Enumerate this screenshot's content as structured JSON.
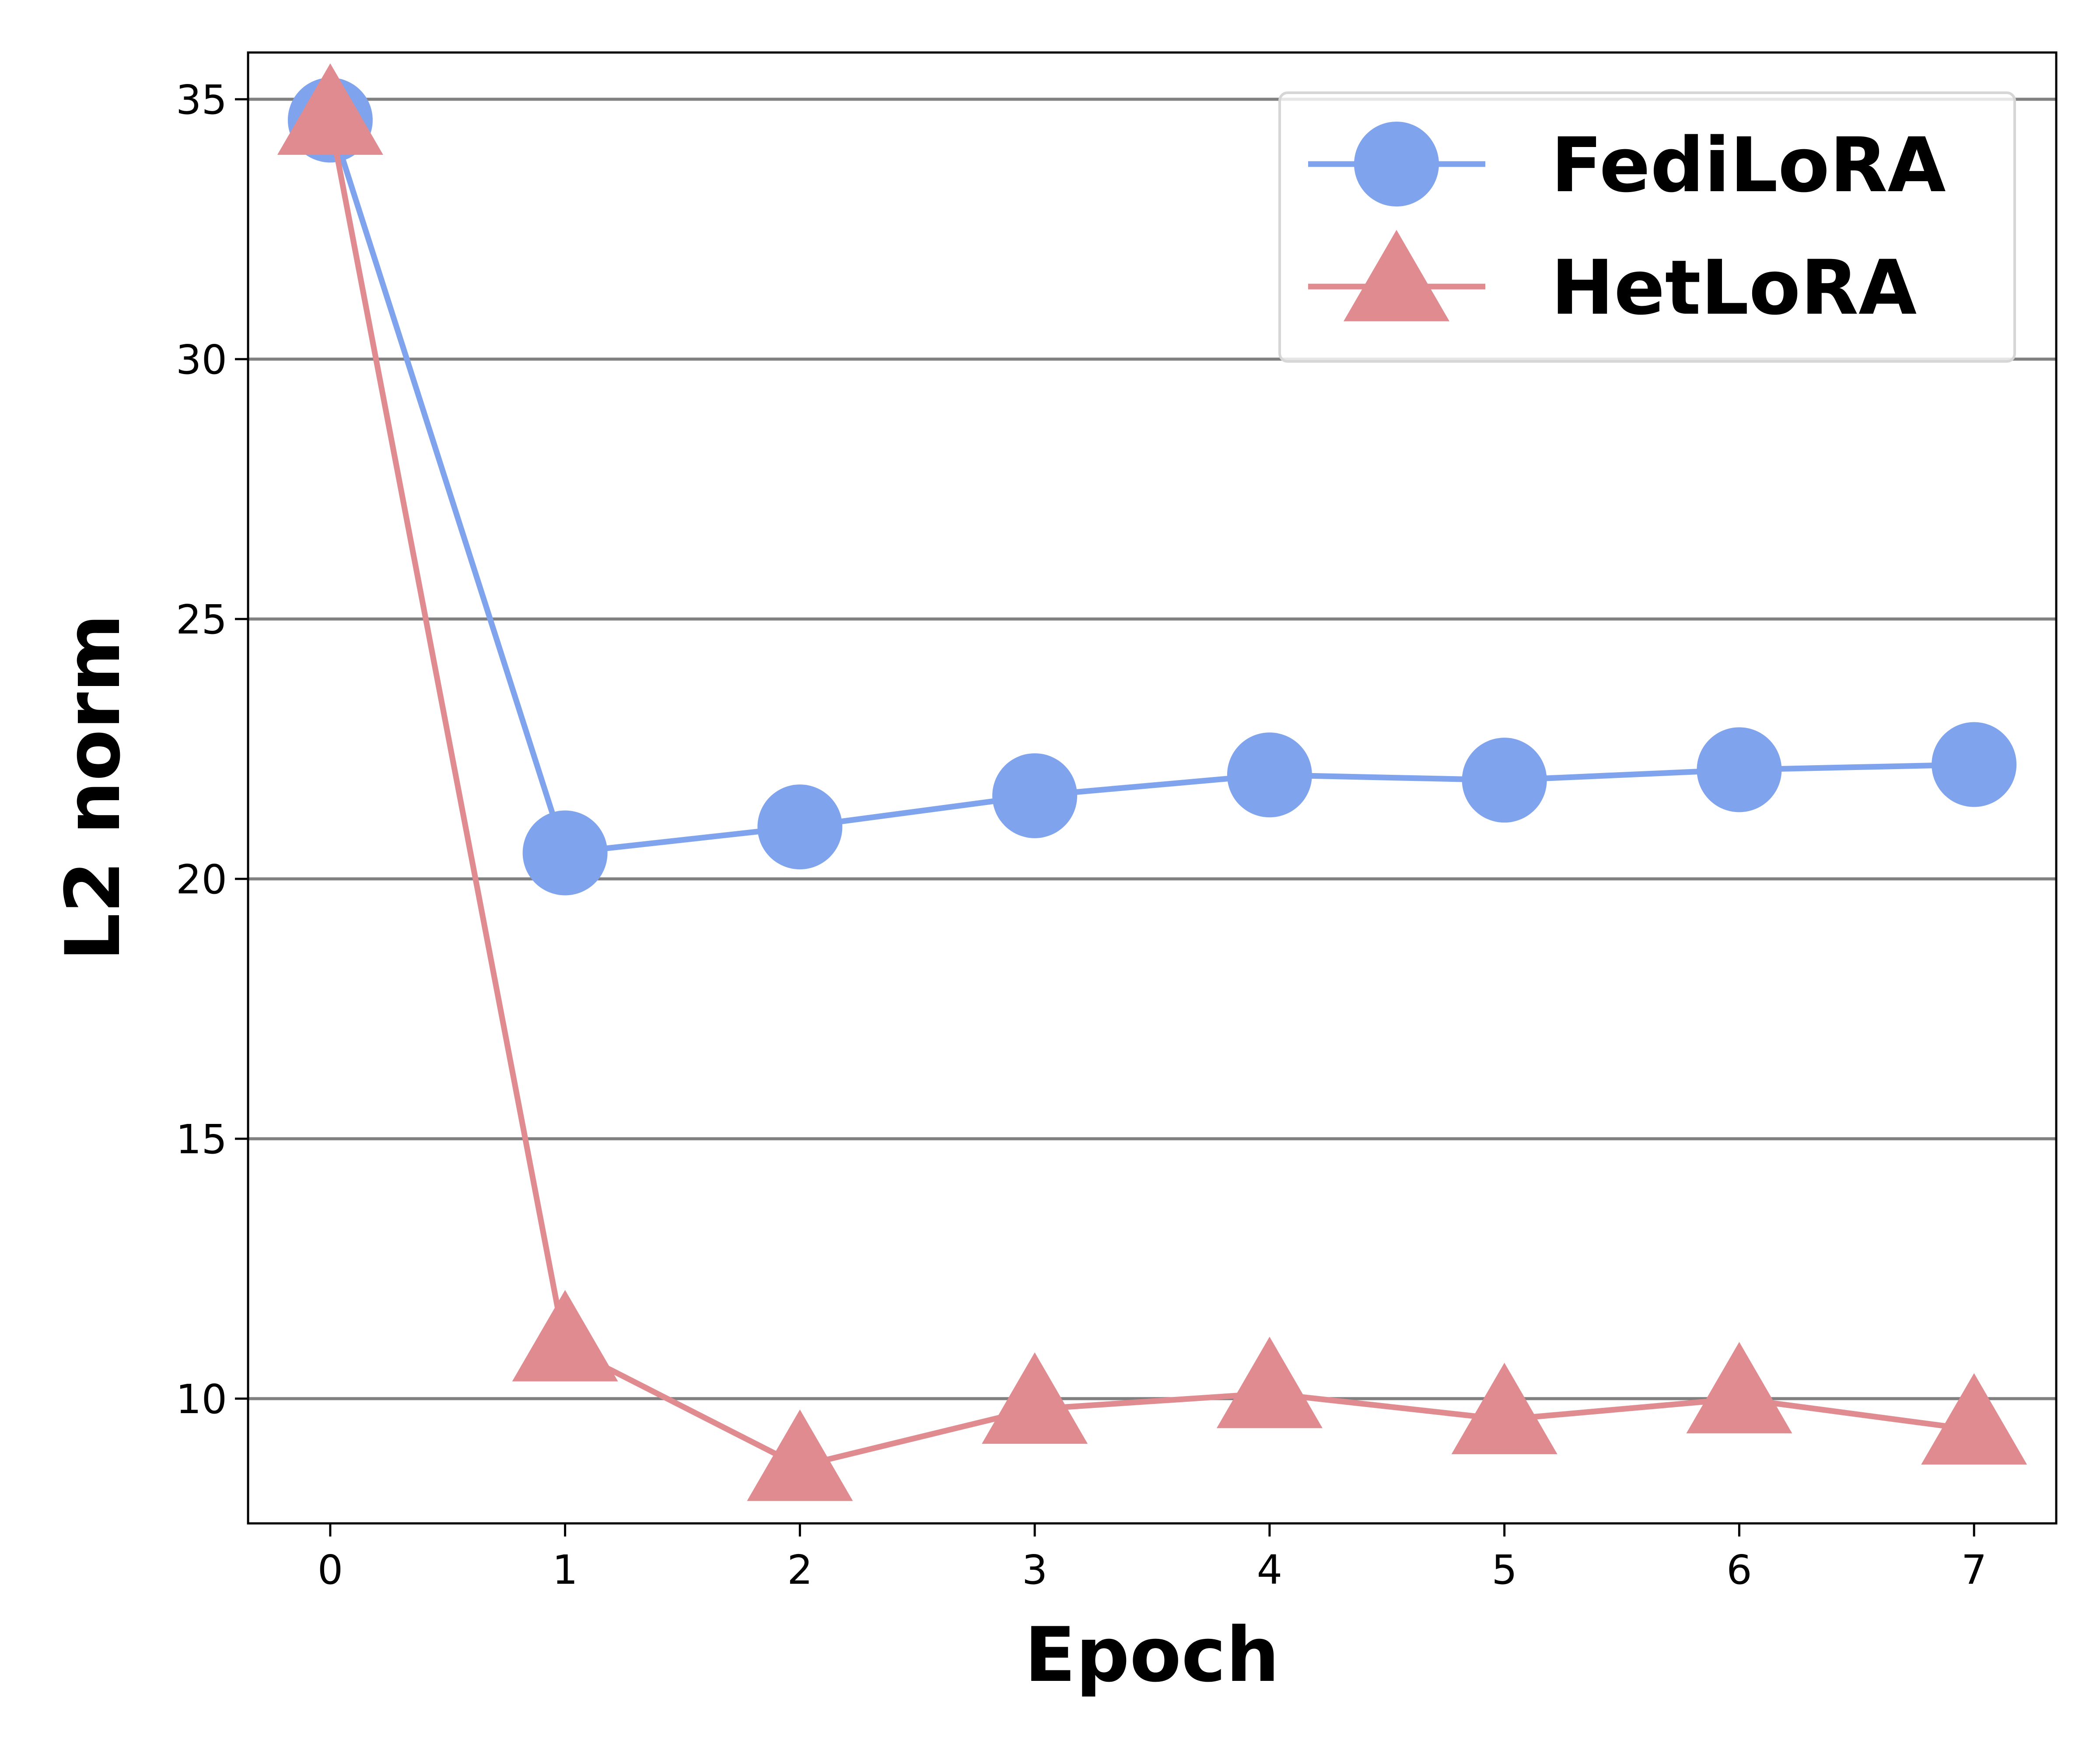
{
  "chart_data": {
    "type": "line",
    "xlabel": "Epoch",
    "ylabel": "L2 norm",
    "x": [
      0,
      1,
      2,
      3,
      4,
      5,
      6,
      7
    ],
    "xticks": [
      "0",
      "1",
      "2",
      "3",
      "4",
      "5",
      "6",
      "7"
    ],
    "yticks": [
      "10",
      "15",
      "20",
      "25",
      "30",
      "35"
    ],
    "xlim": [
      -0.35,
      7.35
    ],
    "ylim": [
      7.6,
      35.9
    ],
    "grid": "horizontal",
    "legend_position": "top-right",
    "series": [
      {
        "name": "FediLoRA",
        "marker": "circle",
        "color": "#7fa3ec",
        "values": [
          34.6,
          20.5,
          21.0,
          21.6,
          22.0,
          21.9,
          22.1,
          22.2
        ]
      },
      {
        "name": "HetLoRA",
        "marker": "triangle",
        "color": "#df8b90",
        "values": [
          34.6,
          11.0,
          8.7,
          9.8,
          10.1,
          9.6,
          10.0,
          9.4
        ]
      }
    ]
  }
}
